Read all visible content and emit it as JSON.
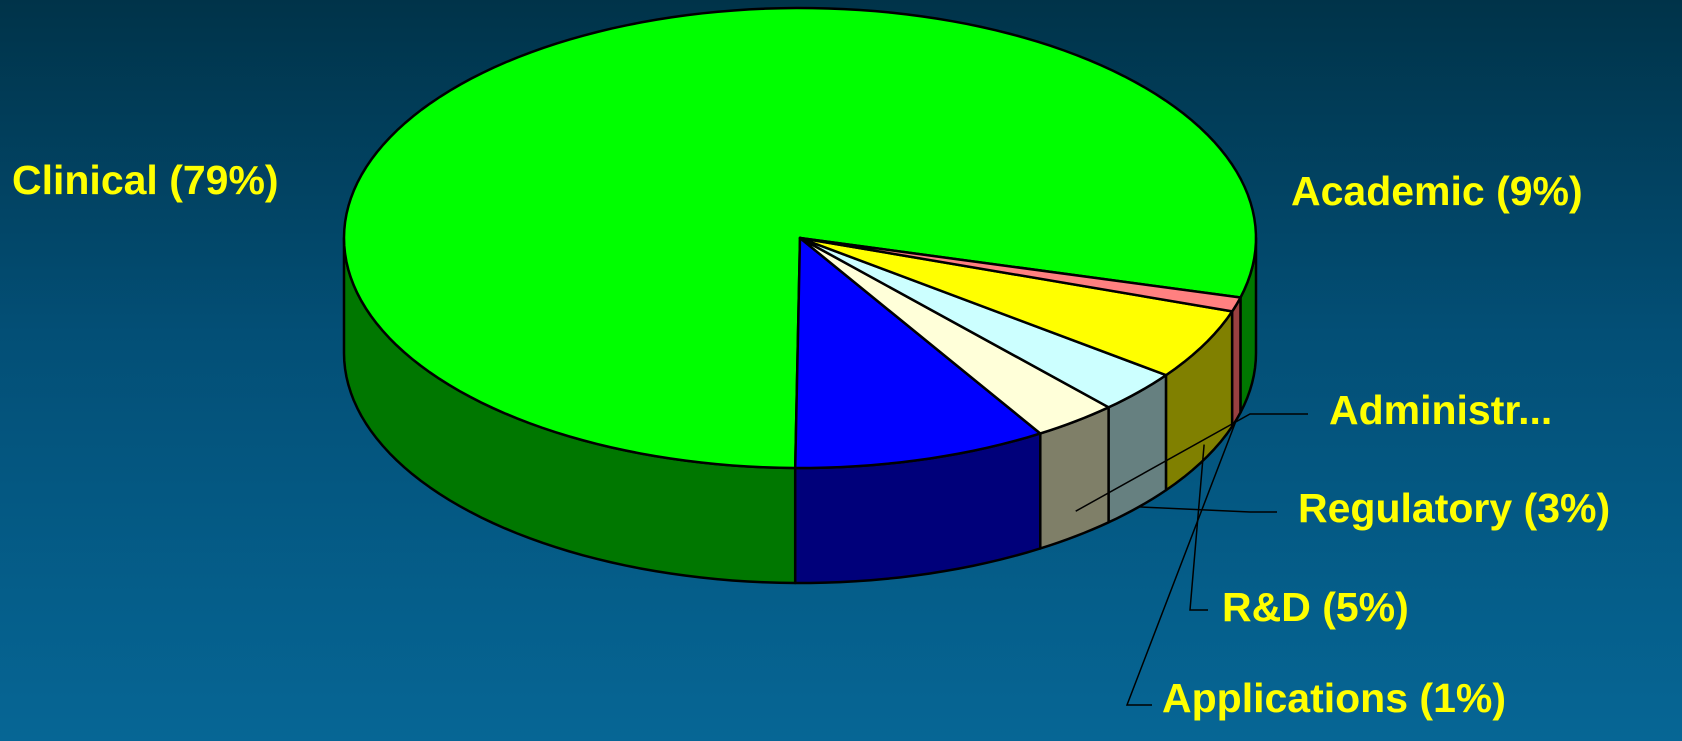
{
  "chart_data": {
    "type": "pie",
    "title": "",
    "label_color": "#ffff00",
    "outline_color": "#000000",
    "slices": [
      {
        "name": "Clinical",
        "label": "Clinical  (79%)",
        "value": 79,
        "top_color": "#00ff00",
        "side_color": "#007700"
      },
      {
        "name": "Academic",
        "label": "Academic  (9%)",
        "value": 9,
        "top_color": "#0000ff",
        "side_color": "#00007a"
      },
      {
        "name": "Administr...",
        "label": "Administr...",
        "value": 3,
        "top_color": "#ffffd9",
        "side_color": "#7f7f68"
      },
      {
        "name": "Regulatory",
        "label": "Regulatory  (3%)",
        "value": 3,
        "top_color": "#ccffff",
        "side_color": "#668080"
      },
      {
        "name": "R&D",
        "label": "R&D (5%)",
        "value": 5,
        "top_color": "#ffff00",
        "side_color": "#808000"
      },
      {
        "name": "Applications",
        "label": "Applications (1%)",
        "value": 1,
        "top_color": "#ff8080",
        "side_color": "#994040"
      }
    ]
  }
}
